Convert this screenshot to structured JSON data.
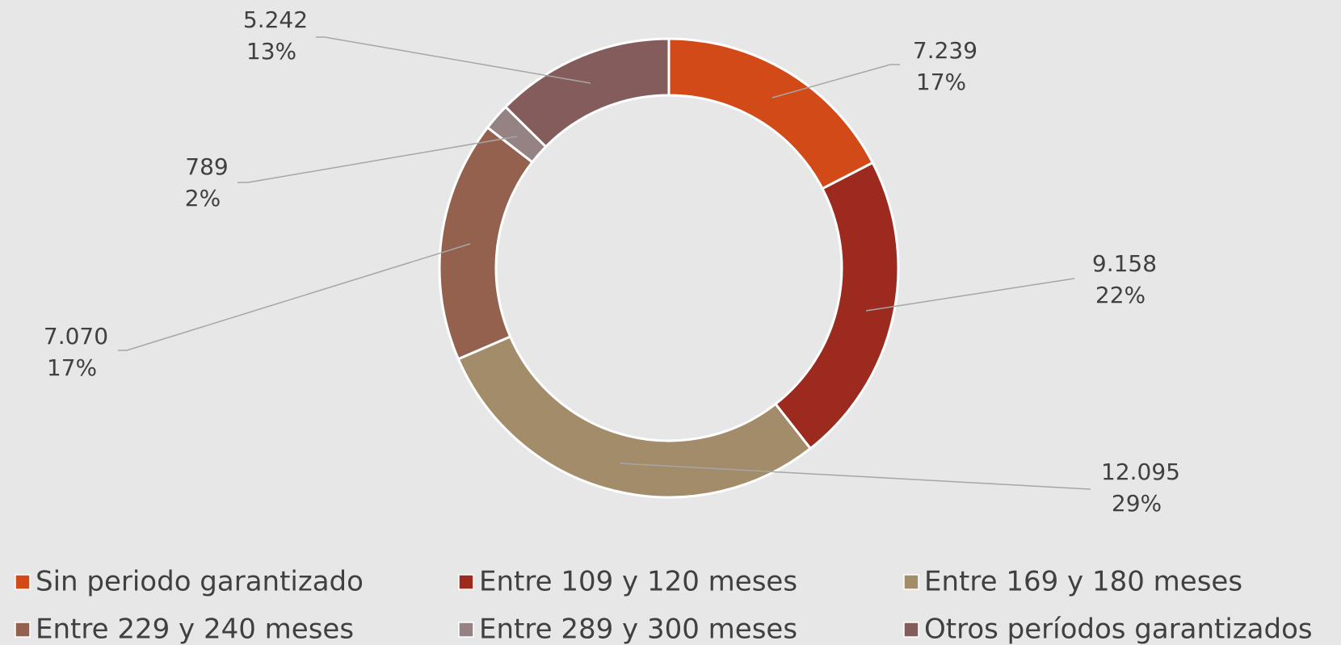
{
  "chart_data": {
    "type": "donut",
    "categories": [
      "Sin periodo garantizado",
      "Entre 109 y 120 meses",
      "Entre 169 y 180 meses",
      "Entre 229 y 240 meses",
      "Entre 289 y 300 meses",
      "Otros períodos garantizados"
    ],
    "values": [
      7239,
      9158,
      12095,
      7070,
      789,
      5242
    ],
    "value_labels": [
      "7.239",
      "9.158",
      "12.095",
      "7.070",
      "789",
      "5.242"
    ],
    "percent_labels": [
      "17%",
      "22%",
      "29%",
      "17%",
      "2%",
      "13%"
    ],
    "colors": [
      "#d24a17",
      "#9c2a1e",
      "#a38c6a",
      "#95614f",
      "#958383",
      "#855c5c"
    ],
    "legend": "bottom"
  }
}
